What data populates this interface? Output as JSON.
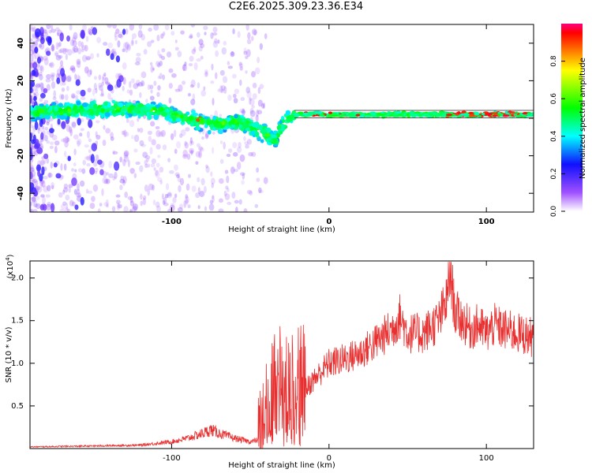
{
  "title": "C2E6.2025.309.23.36.E34",
  "colors": {
    "signal_line": "#e83030",
    "colormap": [
      "#ffffff",
      "#a050ff",
      "#1010ff",
      "#00ffff",
      "#00ff00",
      "#ffff00",
      "#ff0000"
    ]
  },
  "chart_data": [
    {
      "type": "heatmap",
      "title": "C2E6.2025.309.23.36.E34",
      "xlabel": "Height of straight line (km)",
      "ylabel": "Frequency (Hz)",
      "xlim": [
        -190,
        130
      ],
      "ylim": [
        -50,
        50
      ],
      "xticks": [
        -100,
        0,
        100
      ],
      "xtick_labels": [
        "-100",
        "0",
        "100"
      ],
      "yticks": [
        -40,
        -20,
        0,
        20,
        40
      ],
      "ytick_labels": [
        "-40",
        "-20",
        "0",
        "20",
        "40"
      ],
      "grid": false,
      "centerline": {
        "x": [
          -190,
          -160,
          -130,
          -110,
          -95,
          -80,
          -70,
          -60,
          -50,
          -40,
          -35,
          -30,
          -25,
          -20,
          0,
          50,
          75,
          100,
          130
        ],
        "y": [
          3,
          4,
          5,
          4,
          1,
          -2,
          -3,
          -2,
          -4,
          -8,
          -12,
          -4,
          0,
          2,
          2,
          2,
          2,
          2,
          2
        ]
      },
      "colorbar": {
        "label": "Normalized spectral amplitude",
        "range": [
          0,
          1
        ],
        "ticks": [
          0.0,
          0.2,
          0.4,
          0.6,
          0.8
        ],
        "tick_labels": [
          "0.0",
          "0.2",
          "0.4",
          "0.6",
          "0.8"
        ]
      }
    },
    {
      "type": "line",
      "xlabel": "Height of straight line (km)",
      "ylabel": "SNR (10 * v/v)",
      "multiplier_label": "(x10",
      "multiplier_exp": "4",
      "multiplier_close": ")",
      "xlim": [
        -190,
        130
      ],
      "ylim": [
        0,
        2.2
      ],
      "xticks": [
        -100,
        0,
        100
      ],
      "xtick_labels": [
        "-100",
        "0",
        "100"
      ],
      "yticks": [
        0.5,
        1.0,
        1.5,
        2.0
      ],
      "ytick_labels": [
        "0.5",
        "1.0",
        "1.5",
        "2.0"
      ],
      "grid": false,
      "series": [
        {
          "name": "SNR",
          "x": [
            -190,
            -150,
            -120,
            -100,
            -90,
            -80,
            -75,
            -70,
            -60,
            -50,
            -45,
            -40,
            -38,
            -35,
            -33,
            -30,
            -28,
            -25,
            -22,
            -20,
            -18,
            -15,
            -10,
            -5,
            0,
            10,
            20,
            30,
            40,
            45,
            50,
            60,
            70,
            75,
            77,
            80,
            85,
            90,
            95,
            100,
            105,
            110,
            120,
            130
          ],
          "values": [
            0.02,
            0.03,
            0.04,
            0.08,
            0.12,
            0.18,
            0.22,
            0.18,
            0.12,
            0.08,
            0.1,
            0.25,
            0.45,
            0.7,
            0.9,
            0.75,
            0.6,
            0.55,
            0.7,
            0.8,
            0.75,
            0.7,
            0.8,
            0.9,
            1.0,
            1.05,
            1.12,
            1.25,
            1.4,
            1.55,
            1.35,
            1.35,
            1.5,
            1.75,
            2.1,
            1.6,
            1.5,
            1.4,
            1.45,
            1.35,
            1.45,
            1.4,
            1.35,
            1.3
          ]
        }
      ]
    }
  ]
}
